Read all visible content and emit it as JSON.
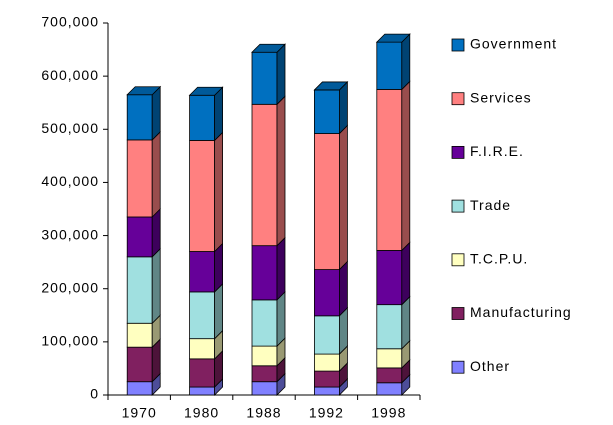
{
  "chart_data": {
    "type": "stacked_bar_3d",
    "categories": [
      "1970",
      "1980",
      "1988",
      "1992",
      "1998"
    ],
    "series": [
      {
        "name": "Other",
        "color": "#8080ff",
        "values": [
          25000,
          15000,
          25000,
          15000,
          23000
        ]
      },
      {
        "name": "Manufacturing",
        "color": "#802060",
        "values": [
          65000,
          53000,
          30000,
          30000,
          28000
        ]
      },
      {
        "name": "T.C.P.U.",
        "color": "#ffffc0",
        "values": [
          45000,
          38000,
          37000,
          32000,
          36000
        ]
      },
      {
        "name": "Trade",
        "color": "#a0e0e0",
        "values": [
          125000,
          88000,
          87000,
          72000,
          83000
        ]
      },
      {
        "name": "F.I.R.E.",
        "color": "#660099",
        "values": [
          75000,
          76000,
          102000,
          87000,
          102000
        ]
      },
      {
        "name": "Services",
        "color": "#ff8080",
        "values": [
          145000,
          209000,
          266000,
          256000,
          303000
        ]
      },
      {
        "name": "Government",
        "color": "#0070c0",
        "values": [
          85000,
          85000,
          98000,
          82000,
          89000
        ]
      }
    ],
    "ylim": [
      0,
      700000
    ],
    "yticks": [
      0,
      {
        "value": 100000,
        "label": "100,000"
      },
      {
        "value": 200000,
        "label": "200,000"
      },
      {
        "value": 300000,
        "label": "300,000"
      },
      {
        "value": 400000,
        "label": "400,000"
      },
      {
        "value": 500000,
        "label": "500,000"
      },
      {
        "value": 600000,
        "label": "600,000"
      },
      {
        "value": 700000,
        "label": "700,000"
      }
    ],
    "legend": "right"
  }
}
